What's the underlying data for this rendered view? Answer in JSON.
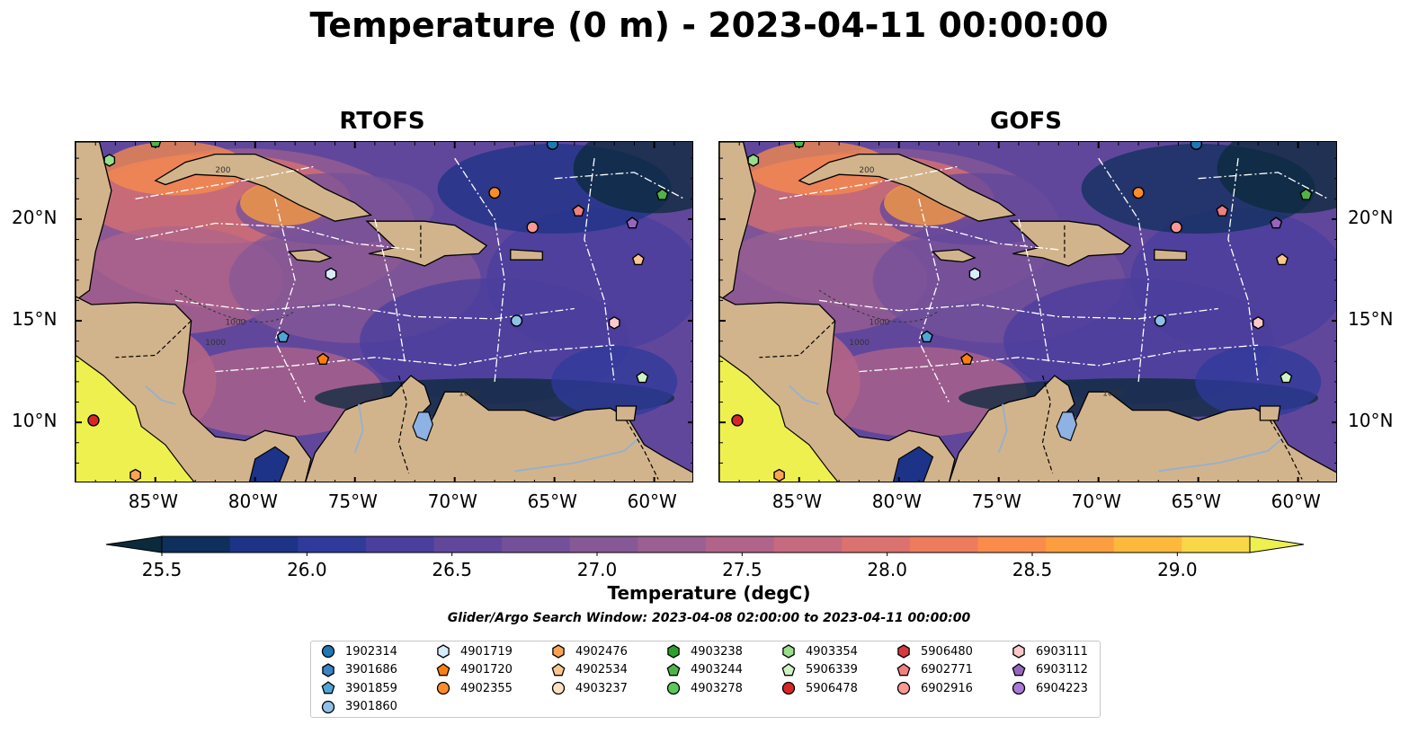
{
  "figure": {
    "title": "Temperature (0 m) - 2023-04-11 00:00:00",
    "panels": [
      {
        "title": "RTOFS",
        "key": "rtofs"
      },
      {
        "title": "GOFS",
        "key": "gofs"
      }
    ],
    "lon_ticks": [
      "85°W",
      "80°W",
      "75°W",
      "70°W",
      "65°W",
      "60°W"
    ],
    "lat_ticks": [
      "20°N",
      "15°N",
      "10°N"
    ],
    "extent": {
      "lon_min": -89,
      "lon_max": -58,
      "lat_min": 7,
      "lat_max": 23.8
    },
    "contour_labels": [
      "1000",
      "1000",
      "200",
      "1000"
    ],
    "colorbar": {
      "label": "Temperature (degC)",
      "ticks": [
        "25.5",
        "26.0",
        "26.5",
        "27.0",
        "27.5",
        "28.0",
        "28.5",
        "29.0"
      ],
      "vmin": 25.5,
      "vmax": 29.25,
      "extend": "both",
      "colors": [
        "#0b2a3b",
        "#0f2f5c",
        "#1c3387",
        "#2f3a9b",
        "#4a3e9e",
        "#61479c",
        "#74509a",
        "#875896",
        "#9b5f91",
        "#b0648a",
        "#c66a80",
        "#db7270",
        "#ed7c5e",
        "#f98c4b",
        "#fc9e3f",
        "#fcb93c",
        "#f9d748",
        "#eef04f"
      ]
    },
    "search_window": "Glider/Argo Search Window: 2023-04-08 02:00:00 to 2023-04-11 00:00:00",
    "land_color": "#d2b48c",
    "lake_color": "#8db2e3",
    "river_color": "#9ab0c8"
  },
  "legend": [
    {
      "id": "1902314",
      "marker": "circle",
      "color": "#1f77b4"
    },
    {
      "id": "3901686",
      "marker": "hexagon",
      "color": "#3a83c4"
    },
    {
      "id": "3901859",
      "marker": "pentagon",
      "color": "#4fa6d6"
    },
    {
      "id": "3901860",
      "marker": "circle",
      "color": "#8fc1e8"
    },
    {
      "id": "4901719",
      "marker": "hexagon",
      "color": "#d7ecfb"
    },
    {
      "id": "4901720",
      "marker": "pentagon",
      "color": "#ff7f0e"
    },
    {
      "id": "4902355",
      "marker": "circle",
      "color": "#ff8c2a"
    },
    {
      "id": "4902476",
      "marker": "hexagon",
      "color": "#ffa352"
    },
    {
      "id": "4902534",
      "marker": "pentagon",
      "color": "#ffc58f"
    },
    {
      "id": "4903237",
      "marker": "circle",
      "color": "#ffe0c2"
    },
    {
      "id": "4903238",
      "marker": "hexagon",
      "color": "#2ca02c"
    },
    {
      "id": "4903244",
      "marker": "pentagon",
      "color": "#4fb448"
    },
    {
      "id": "4903278",
      "marker": "circle",
      "color": "#5cc85c"
    },
    {
      "id": "4903354",
      "marker": "hexagon",
      "color": "#98df8a"
    },
    {
      "id": "5906339",
      "marker": "pentagon",
      "color": "#cff2c3"
    },
    {
      "id": "5906478",
      "marker": "circle",
      "color": "#d62728"
    },
    {
      "id": "5906480",
      "marker": "hexagon",
      "color": "#d83a3a"
    },
    {
      "id": "6902771",
      "marker": "pentagon",
      "color": "#f08080"
    },
    {
      "id": "6902916",
      "marker": "circle",
      "color": "#ff9896"
    },
    {
      "id": "6903111",
      "marker": "hexagon",
      "color": "#ffc9c9"
    },
    {
      "id": "6903112",
      "marker": "pentagon",
      "color": "#9467bd"
    },
    {
      "id": "6904223",
      "marker": "circle",
      "color": "#a77ad6"
    }
  ],
  "float_positions": [
    {
      "id": "1902314",
      "lon": -65.1,
      "lat": 23.7
    },
    {
      "id": "5906478",
      "lon": -88.1,
      "lat": 10.1
    },
    {
      "id": "4902476",
      "lon": -86.0,
      "lat": 7.4
    },
    {
      "id": "4903354",
      "lon": -87.3,
      "lat": 22.9
    },
    {
      "id": "4903244",
      "lon": -85.0,
      "lat": 23.8
    },
    {
      "id": "4902355",
      "lon": -68.0,
      "lat": 21.3
    },
    {
      "id": "6902916",
      "lon": -66.1,
      "lat": 19.6
    },
    {
      "id": "6902771",
      "lon": -63.8,
      "lat": 20.4
    },
    {
      "id": "6903112",
      "lon": -61.1,
      "lat": 19.8
    },
    {
      "id": "4903244",
      "lon": -59.6,
      "lat": 21.2
    },
    {
      "id": "4902534",
      "lon": -60.8,
      "lat": 18.0
    },
    {
      "id": "4901719",
      "lon": -76.2,
      "lat": 17.3
    },
    {
      "id": "3901860",
      "lon": -66.9,
      "lat": 15.0
    },
    {
      "id": "6903111",
      "lon": -62.0,
      "lat": 14.9
    },
    {
      "id": "3901859",
      "lon": -78.6,
      "lat": 14.2
    },
    {
      "id": "4901720",
      "lon": -76.6,
      "lat": 13.1
    },
    {
      "id": "5906339",
      "lon": -60.6,
      "lat": 12.2
    }
  ]
}
